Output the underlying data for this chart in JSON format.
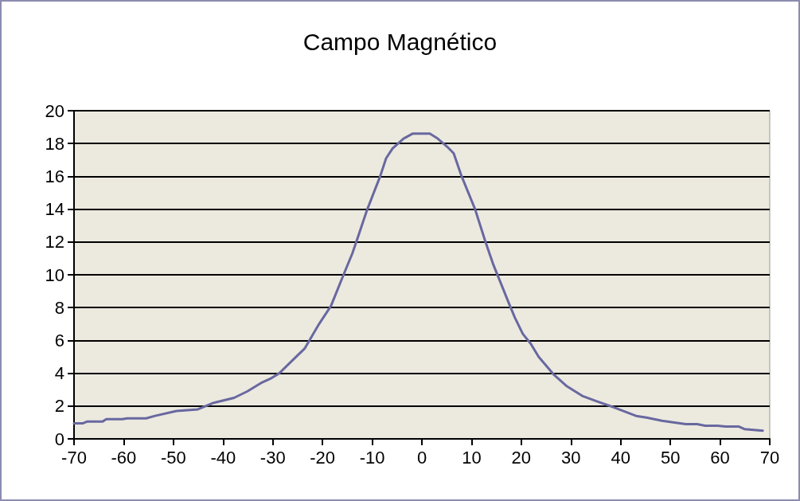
{
  "chart_data": {
    "type": "line",
    "title": "Campo Magnético",
    "x": [
      -70,
      -68.2,
      -67.4,
      -64.3,
      -63.5,
      -60.3,
      -59.3,
      -55.5,
      -53.7,
      -49.4,
      -45.1,
      -41.9,
      -37.8,
      -35.1,
      -32.4,
      -30.3,
      -28.7,
      -26,
      -23.6,
      -20.7,
      -18.3,
      -15.9,
      -14,
      -13.2,
      -11.1,
      -8.4,
      -7.2,
      -5.9,
      -3.7,
      -1.9,
      1.6,
      3.2,
      5.1,
      6.4,
      8,
      10.7,
      12.8,
      14.4,
      17.6,
      18.7,
      20.3,
      21.9,
      23.5,
      26.6,
      29.2,
      32.4,
      35.1,
      38.8,
      43.1,
      45.2,
      48.3,
      53.1,
      55.4,
      57,
      59.5,
      61.1,
      63.8,
      64.9,
      68.6
    ],
    "series": [
      {
        "color": "#6868a0",
        "values": [
          0.95,
          0.95,
          1.05,
          1.05,
          1.2,
          1.2,
          1.25,
          1.25,
          1.4,
          1.7,
          1.8,
          2.2,
          2.5,
          2.9,
          3.4,
          3.7,
          4.0,
          4.8,
          5.5,
          7.0,
          8.1,
          9.9,
          11.3,
          12.0,
          13.9,
          16.0,
          17.1,
          17.7,
          18.3,
          18.6,
          18.6,
          18.3,
          17.8,
          17.4,
          16.0,
          14.0,
          12.0,
          10.6,
          8.2,
          7.4,
          6.4,
          5.8,
          5.0,
          3.9,
          3.2,
          2.6,
          2.3,
          1.9,
          1.4,
          1.3,
          1.1,
          0.9,
          0.9,
          0.8,
          0.8,
          0.75,
          0.75,
          0.6,
          0.5
        ]
      }
    ],
    "xlim": [
      -70,
      70
    ],
    "xticks": [
      -70,
      -60,
      -50,
      -40,
      -30,
      -20,
      -10,
      0,
      10,
      20,
      30,
      40,
      50,
      60,
      70
    ],
    "ylim": [
      0,
      20
    ],
    "yticks": [
      0,
      2,
      4,
      6,
      8,
      10,
      12,
      14,
      16,
      18,
      20
    ],
    "grid": "y",
    "marker": "none",
    "line_style": "solid"
  }
}
